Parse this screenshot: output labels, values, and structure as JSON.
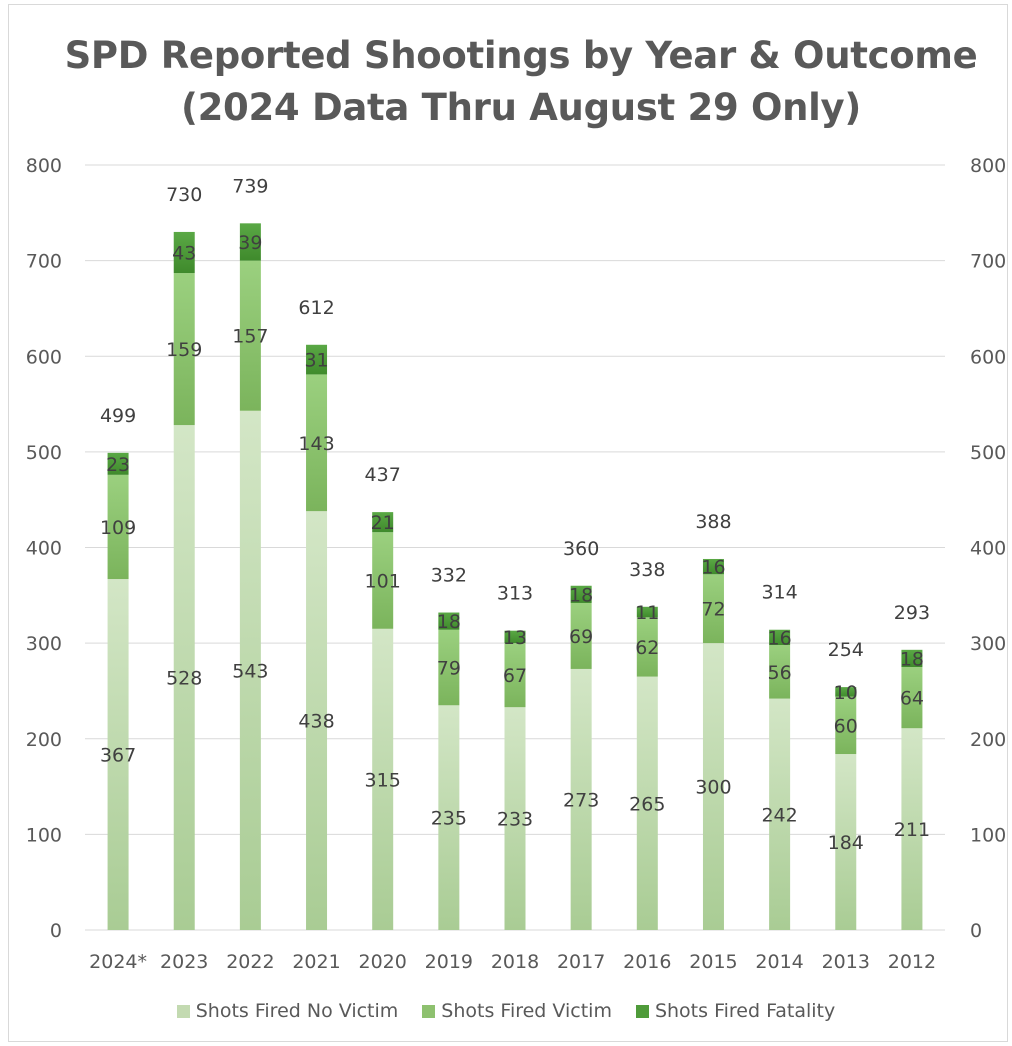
{
  "title_line1": "SPD Reported Shootings by Year & Outcome",
  "title_line2": "(2024 Data Thru August 29 Only)",
  "colors": {
    "no_victim": "#c3dab1",
    "victim": "#8ec16f",
    "fatality": "#4f9b3a",
    "grid": "#d9d9d9",
    "text": "#595959"
  },
  "chart_data": {
    "type": "bar",
    "stacked": true,
    "title": "SPD Reported Shootings by Year & Outcome (2024 Data Thru August 29 Only)",
    "categories": [
      "2024*",
      "2023",
      "2022",
      "2021",
      "2020",
      "2019",
      "2018",
      "2017",
      "2016",
      "2015",
      "2014",
      "2013",
      "2012"
    ],
    "series": [
      {
        "name": "Shots Fired No Victim",
        "values": [
          367,
          528,
          543,
          438,
          315,
          235,
          233,
          273,
          265,
          300,
          242,
          184,
          211
        ]
      },
      {
        "name": "Shots Fired Victim",
        "values": [
          109,
          159,
          157,
          143,
          101,
          79,
          67,
          69,
          62,
          72,
          56,
          60,
          64
        ]
      },
      {
        "name": "Shots Fired Fatality",
        "values": [
          23,
          43,
          39,
          31,
          21,
          18,
          13,
          18,
          11,
          16,
          16,
          10,
          18
        ]
      }
    ],
    "totals": [
      499,
      730,
      739,
      612,
      437,
      332,
      313,
      360,
      338,
      388,
      314,
      254,
      293
    ],
    "ylim": [
      0,
      800
    ],
    "yticks": [
      0,
      100,
      200,
      300,
      400,
      500,
      600,
      700,
      800
    ],
    "secondary_yticks": [
      0,
      100,
      200,
      300,
      400,
      500,
      600,
      700,
      800
    ],
    "grid": true,
    "legend_position": "bottom"
  }
}
